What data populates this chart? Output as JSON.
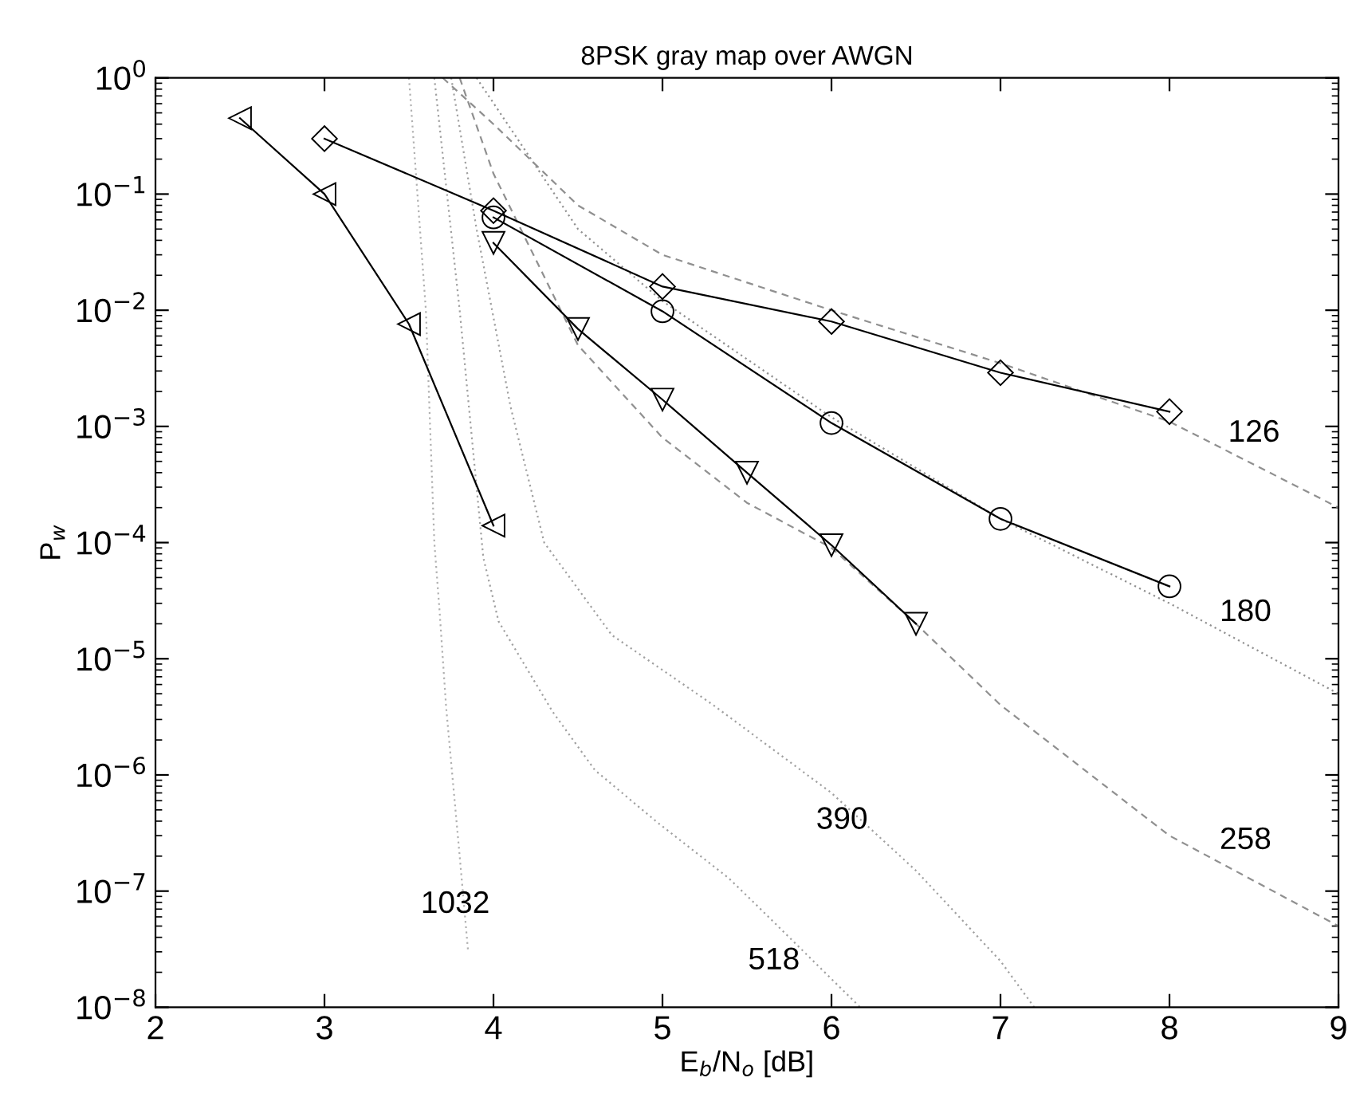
{
  "chart_data": {
    "type": "line",
    "title": "8PSK gray map over AWGN",
    "xlabel": "E$_{b}$/N$_{o}$ [dB]",
    "ylabel": "P$_{w}$",
    "log": "y",
    "xlim": [
      2,
      9
    ],
    "xticks": [
      2,
      3,
      4,
      5,
      6,
      7,
      8,
      9
    ],
    "ylim": [
      1e-08,
      1
    ],
    "yticks": [
      {
        "value": 1e-08,
        "label": "10$^{−8}$"
      },
      {
        "value": 1e-07,
        "label": "10$^{−7}$"
      },
      {
        "value": 1e-06,
        "label": "10$^{−6}$"
      },
      {
        "value": 1e-05,
        "label": "10$^{−5}$"
      },
      {
        "value": 0.0001,
        "label": "10$^{−4}$"
      },
      {
        "value": 0.001,
        "label": "10$^{−3}$"
      },
      {
        "value": 0.01,
        "label": "10$^{−2}$"
      },
      {
        "value": 0.1,
        "label": "10$^{−1}$"
      },
      {
        "value": 1,
        "label": "10$^{0}$"
      }
    ],
    "grid": false,
    "legend": false,
    "series": [
      {
        "name": "126",
        "color": "#909090",
        "line_style": "dashed",
        "marker": "none",
        "x": [
          3.7,
          4,
          4.5,
          5,
          6,
          7,
          8,
          9
        ],
        "values": [
          1,
          0.4,
          0.08,
          0.03,
          0.01,
          0.0035,
          0.0011,
          0.0002
        ]
      },
      {
        "name": "180",
        "color": "#909090",
        "line_style": "dotted",
        "marker": "none",
        "x": [
          3.9,
          4.5,
          5,
          6,
          7,
          8,
          9
        ],
        "values": [
          1,
          0.05,
          0.012,
          0.0012,
          0.00016,
          3e-05,
          5e-06
        ]
      },
      {
        "name": "258",
        "color": "#909090",
        "line_style": "dashed",
        "marker": "none",
        "x": [
          3.8,
          4,
          4.5,
          5,
          5.5,
          6,
          6.5,
          7,
          8,
          9
        ],
        "values": [
          1,
          0.15,
          0.005,
          0.0008,
          0.00022,
          9e-05,
          2e-05,
          4e-06,
          3e-07,
          5e-08
        ]
      },
      {
        "name": "390",
        "color": "#a0a0a0",
        "line_style": "dotted",
        "marker": "none",
        "x": [
          3.75,
          3.9,
          4.1,
          4.3,
          4.7,
          5.3,
          6,
          6.5,
          7,
          7.2
        ],
        "values": [
          1,
          0.05,
          0.0015,
          0.0001,
          1.6e-05,
          4e-06,
          7e-07,
          1.5e-07,
          2.5e-08,
          1e-08
        ]
      },
      {
        "name": "518",
        "color": "#a0a0a0",
        "line_style": "dotted",
        "marker": "none",
        "x": [
          3.65,
          3.8,
          3.94,
          4.03,
          4.35,
          4.6,
          4.97,
          5.39,
          5.54,
          6.17
        ],
        "values": [
          1,
          0.01,
          7.4e-05,
          2.1e-05,
          3.5e-06,
          1.1e-06,
          3.9e-07,
          1.3e-07,
          8e-08,
          1e-08
        ]
      },
      {
        "name": "1032",
        "color": "#b0b0b0",
        "line_style": "dotted",
        "marker": "none",
        "x": [
          3.5,
          3.6,
          3.65,
          3.68,
          3.72,
          3.8,
          3.85
        ],
        "values": [
          1,
          0.01,
          0.0001,
          2.7e-05,
          3.8e-06,
          2e-07,
          3e-08
        ]
      },
      {
        "color": "#000000",
        "line_style": "solid",
        "marker": "diamond",
        "x": [
          3,
          4,
          5,
          6,
          7,
          8
        ],
        "values": [
          0.3,
          0.072,
          0.016,
          0.008,
          0.0029,
          0.00134
        ]
      },
      {
        "color": "#000000",
        "line_style": "solid",
        "marker": "circle",
        "x": [
          4,
          5,
          6,
          7,
          8
        ],
        "values": [
          0.063,
          0.0098,
          0.00107,
          0.00016,
          4.2e-05
        ]
      },
      {
        "color": "#000000",
        "line_style": "solid",
        "marker": "triangle",
        "x": [
          4,
          4.5,
          5,
          5.5,
          6,
          6.5
        ],
        "values": [
          0.038,
          0.0069,
          0.0017,
          0.0004,
          9.5e-05,
          2e-05
        ]
      },
      {
        "color": "#000000",
        "line_style": "solid",
        "marker": "triangle_left",
        "x": [
          2.5,
          3,
          3.5,
          4
        ],
        "values": [
          0.45,
          0.1,
          0.0076,
          0.00014
        ]
      }
    ]
  }
}
